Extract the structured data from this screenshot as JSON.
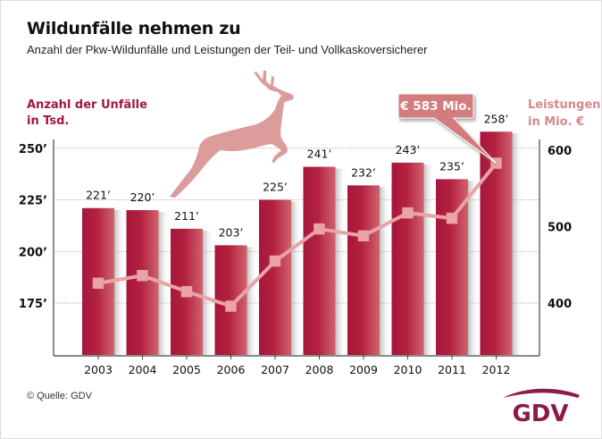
{
  "title": "Wildunfälle nehmen zu",
  "subtitle": "Anzahl der Pkw-Wildunfälle und Leistungen der Teil- und Vollkaskoversicherer",
  "source": "© Quelle: GDV",
  "logo": {
    "text": "GDV",
    "icon": "gdv-swoosh-logo"
  },
  "decoration": {
    "icon": "leaping-deer-icon"
  },
  "colors": {
    "bar": "#a8163d",
    "bar_highlight": "#cf5a6a",
    "line": "#e8a3a6",
    "marker": "#eba3a6",
    "callout": "#d37b80",
    "left_axis_title": "#a1173f",
    "right_axis_title": "#d4898c",
    "deer": "#dc9c9c",
    "logo": "#8c1a4b"
  },
  "chart_data": {
    "type": "bar+line",
    "title": "Wildunfälle nehmen zu",
    "subtitle": "Anzahl der Pkw-Wildunfälle und Leistungen der Teil- und Vollkaskoversicherer",
    "categories": [
      "2003",
      "2004",
      "2005",
      "2006",
      "2007",
      "2008",
      "2009",
      "2010",
      "2011",
      "2012"
    ],
    "series": [
      {
        "name": "Anzahl der Unfälle in Tsd.",
        "type": "bar",
        "axis": "left",
        "values": [
          221,
          220,
          211,
          203,
          225,
          241,
          232,
          243,
          235,
          258
        ],
        "labels": [
          "221’",
          "220’",
          "211’",
          "203’",
          "225’",
          "241’",
          "232’",
          "243’",
          "235’",
          "258’"
        ]
      },
      {
        "name": "Leistungen in Mio. €",
        "type": "line",
        "axis": "right",
        "values": [
          426,
          436,
          415,
          396,
          455,
          497,
          488,
          518,
          511,
          583
        ]
      }
    ],
    "left_axis": {
      "label_line1": "Anzahl der Unfälle",
      "label_line2": "in Tsd.",
      "range": [
        150,
        260
      ],
      "ticks": [
        175,
        200,
        225,
        250
      ],
      "tick_labels": [
        "175’",
        "200’",
        "225’",
        "250’"
      ]
    },
    "right_axis": {
      "label_line1": "Leistungen",
      "label_line2": "in Mio. €",
      "range": [
        332,
        620
      ],
      "ticks": [
        400,
        500,
        600
      ],
      "tick_labels": [
        "400",
        "500",
        "600"
      ]
    },
    "grid": "dotted horizontal",
    "annotation": {
      "text": "€ 583 Mio.",
      "target_category": "2012",
      "target_series": "Leistungen in Mio. €"
    }
  }
}
